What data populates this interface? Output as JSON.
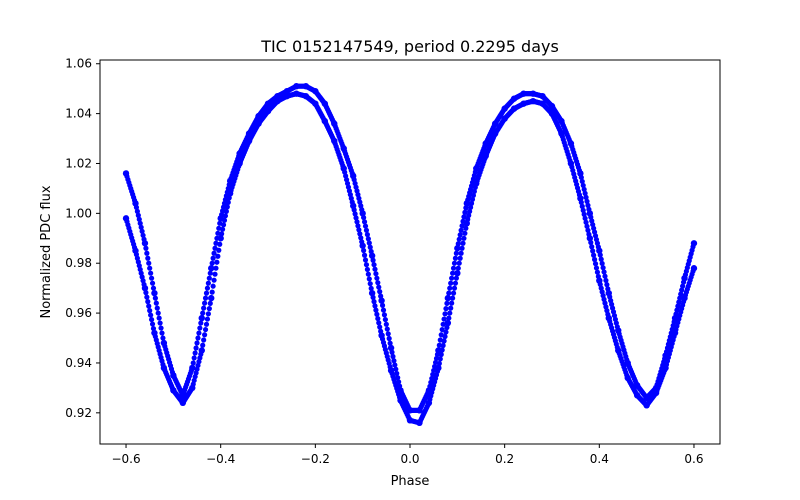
{
  "chart_data": {
    "type": "scatter",
    "title": "TIC 0152147549, period 0.2295 days",
    "xlabel": "Phase",
    "ylabel": "Normalized PDC flux",
    "xlim": [
      -0.655,
      0.655
    ],
    "ylim": [
      0.9075,
      1.0615
    ],
    "x_ticks": [
      -0.6,
      -0.4,
      -0.2,
      0.0,
      0.2,
      0.4,
      0.6
    ],
    "x_tick_labels": [
      "−0.6",
      "−0.4",
      "−0.2",
      "0.0",
      "0.2",
      "0.4",
      "0.6"
    ],
    "y_ticks": [
      0.92,
      0.94,
      0.96,
      0.98,
      1.0,
      1.02,
      1.04,
      1.06
    ],
    "y_tick_labels": [
      "0.92",
      "0.94",
      "0.96",
      "0.98",
      "1.00",
      "1.02",
      "1.04",
      "1.06"
    ],
    "grid": false,
    "marker_color": "#0000ff",
    "series": [
      {
        "values_description": "phase-folded light curve, upper track",
        "x": [
          -0.6,
          -0.58,
          -0.56,
          -0.54,
          -0.52,
          -0.5,
          -0.48,
          -0.46,
          -0.44,
          -0.42,
          -0.4,
          -0.38,
          -0.36,
          -0.34,
          -0.32,
          -0.3,
          -0.28,
          -0.26,
          -0.24,
          -0.22,
          -0.2,
          -0.18,
          -0.16,
          -0.14,
          -0.12,
          -0.1,
          -0.08,
          -0.06,
          -0.04,
          -0.02,
          0.0,
          0.02,
          0.04,
          0.06,
          0.08,
          0.1,
          0.12,
          0.14,
          0.16,
          0.18,
          0.2,
          0.22,
          0.24,
          0.26,
          0.28,
          0.3,
          0.32,
          0.34,
          0.36,
          0.38,
          0.4,
          0.42,
          0.44,
          0.46,
          0.48,
          0.5,
          0.52,
          0.54,
          0.56,
          0.58,
          0.6
        ],
        "y": [
          1.016,
          1.004,
          0.988,
          0.968,
          0.948,
          0.935,
          0.927,
          0.938,
          0.958,
          0.978,
          0.998,
          1.013,
          1.024,
          1.032,
          1.039,
          1.044,
          1.047,
          1.049,
          1.051,
          1.051,
          1.049,
          1.044,
          1.036,
          1.026,
          1.015,
          1.0,
          0.983,
          0.965,
          0.946,
          0.929,
          0.921,
          0.921,
          0.929,
          0.945,
          0.966,
          0.986,
          1.004,
          1.018,
          1.028,
          1.036,
          1.042,
          1.046,
          1.048,
          1.048,
          1.047,
          1.043,
          1.037,
          1.028,
          1.016,
          1.0,
          0.985,
          0.968,
          0.953,
          0.94,
          0.931,
          0.926,
          0.93,
          0.943,
          0.958,
          0.974,
          0.988
        ]
      },
      {
        "values_description": "phase-folded light curve, lower track",
        "x": [
          -0.6,
          -0.58,
          -0.56,
          -0.54,
          -0.52,
          -0.5,
          -0.48,
          -0.46,
          -0.44,
          -0.42,
          -0.4,
          -0.38,
          -0.36,
          -0.34,
          -0.32,
          -0.3,
          -0.28,
          -0.26,
          -0.24,
          -0.22,
          -0.2,
          -0.18,
          -0.16,
          -0.14,
          -0.12,
          -0.1,
          -0.08,
          -0.06,
          -0.04,
          -0.02,
          0.0,
          0.02,
          0.04,
          0.06,
          0.08,
          0.1,
          0.12,
          0.14,
          0.16,
          0.18,
          0.2,
          0.22,
          0.24,
          0.26,
          0.28,
          0.3,
          0.32,
          0.34,
          0.36,
          0.38,
          0.4,
          0.42,
          0.44,
          0.46,
          0.48,
          0.5,
          0.52,
          0.54,
          0.56,
          0.58,
          0.6
        ],
        "y": [
          0.998,
          0.985,
          0.97,
          0.952,
          0.938,
          0.929,
          0.924,
          0.93,
          0.945,
          0.966,
          0.99,
          1.008,
          1.02,
          1.029,
          1.036,
          1.041,
          1.045,
          1.047,
          1.048,
          1.047,
          1.044,
          1.037,
          1.029,
          1.018,
          1.003,
          0.987,
          0.968,
          0.951,
          0.937,
          0.925,
          0.917,
          0.916,
          0.924,
          0.938,
          0.956,
          0.976,
          0.996,
          1.012,
          1.023,
          1.032,
          1.038,
          1.042,
          1.044,
          1.045,
          1.044,
          1.04,
          1.032,
          1.02,
          1.006,
          0.99,
          0.973,
          0.958,
          0.945,
          0.934,
          0.927,
          0.923,
          0.928,
          0.938,
          0.952,
          0.966,
          0.978
        ]
      }
    ]
  }
}
